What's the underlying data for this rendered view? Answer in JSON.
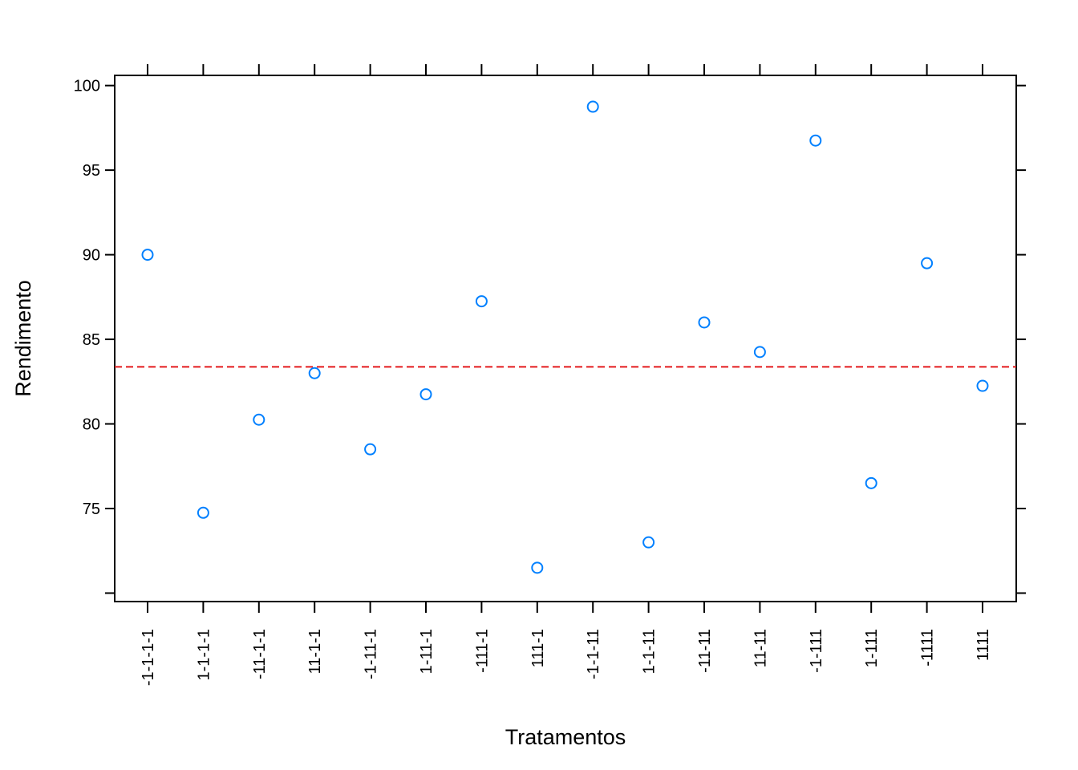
{
  "chart_data": {
    "type": "scatter",
    "xlabel": "Tratamentos",
    "ylabel": "Rendimento",
    "categories": [
      "-1-1-1-1",
      "1-1-1-1",
      "-11-1-1",
      "11-1-1",
      "-1-11-1",
      "1-11-1",
      "-111-1",
      "111-1",
      "-1-1-11",
      "1-1-11",
      "-11-11",
      "11-11",
      "-1-111",
      "1-111",
      "-1111",
      "1111"
    ],
    "values": [
      90.0,
      74.75,
      80.25,
      83.0,
      78.5,
      81.75,
      87.25,
      71.5,
      98.75,
      73.0,
      86.0,
      84.25,
      96.75,
      76.5,
      89.5,
      82.25
    ],
    "yticks": [
      75,
      80,
      85,
      90,
      95,
      100
    ],
    "ylim": [
      69.5,
      100.6
    ],
    "reference_line": {
      "value": 83.375,
      "style": "dashed",
      "color": "#e41a1c"
    },
    "point_color": "#0080ff",
    "grid": false
  }
}
